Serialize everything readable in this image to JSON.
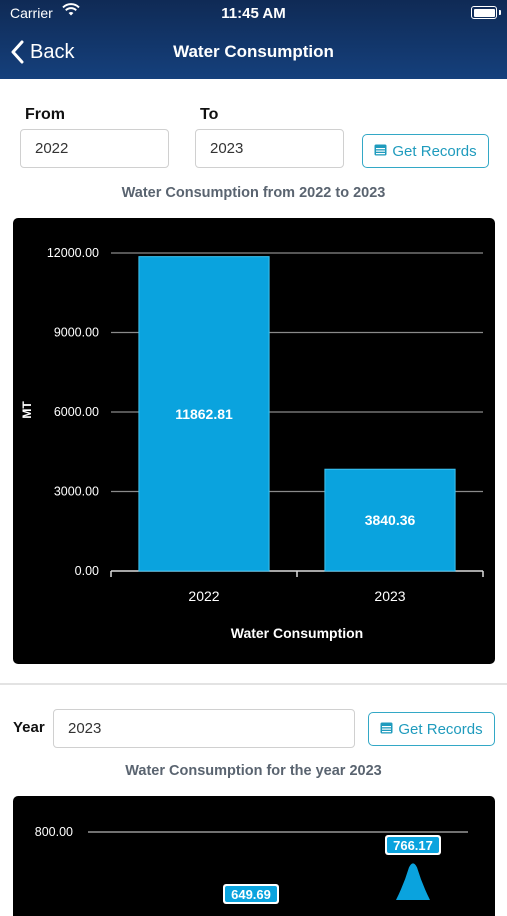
{
  "status_bar": {
    "carrier": "Carrier",
    "time": "11:45 AM"
  },
  "nav": {
    "back_label": "Back",
    "title": "Water Consumption"
  },
  "range_filter": {
    "from_label": "From",
    "from_value": "2022",
    "to_label": "To",
    "to_value": "2023",
    "button_label": "Get Records"
  },
  "year_filter": {
    "year_label": "Year",
    "year_value": "2023",
    "button_label": "Get Records"
  },
  "colors": {
    "accent": "#1f9bbd",
    "bar": "#0aa3de",
    "header": "#15407c",
    "chart_bg": "#000000"
  },
  "chart_data": [
    {
      "type": "bar",
      "title": "Water Consumption from 2022 to 2023",
      "xlabel": "Water Consumption",
      "ylabel": "MT",
      "categories": [
        "2022",
        "2023"
      ],
      "values": [
        11862.81,
        3840.36
      ],
      "value_labels": [
        "11862.81",
        "3840.36"
      ],
      "ylim": [
        0,
        12000
      ],
      "yticks": [
        "0.00",
        "3000.00",
        "6000.00",
        "9000.00",
        "12000.00"
      ],
      "grid": true
    },
    {
      "type": "area",
      "title": "Water Consumption for the year 2023",
      "ylim_top": 800,
      "yticks": [
        "800.00"
      ],
      "visible_value_labels": [
        "649.69",
        "766.17"
      ],
      "grid": true
    }
  ]
}
